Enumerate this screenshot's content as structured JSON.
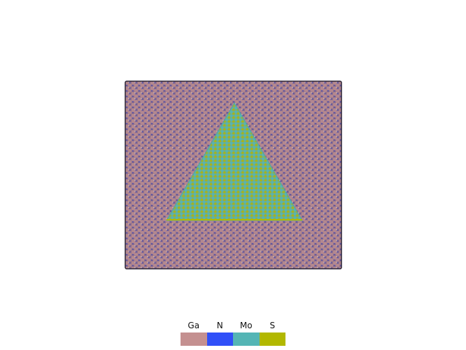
{
  "structure": {
    "substrate": "Ga-N",
    "flake": "Mo-S",
    "flake_shape": "triangle"
  },
  "legend": {
    "items": [
      {
        "label": "Ga",
        "color": "#c49090"
      },
      {
        "label": "N",
        "color": "#3050f8"
      },
      {
        "label": "Mo",
        "color": "#54b5b5"
      },
      {
        "label": "S",
        "color": "#b2b800"
      }
    ]
  }
}
